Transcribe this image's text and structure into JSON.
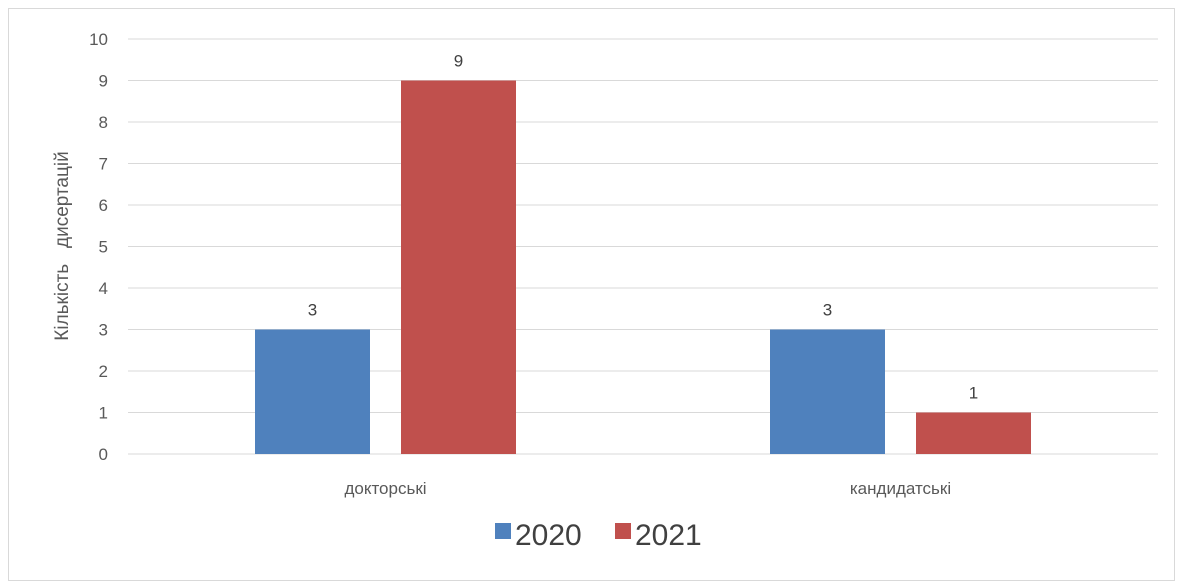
{
  "chart_data": {
    "type": "bar",
    "categories": [
      "докторські",
      "кандидатські"
    ],
    "series": [
      {
        "name": "2020",
        "values": [
          3,
          3
        ],
        "color": "#4F81BD"
      },
      {
        "name": "2021",
        "values": [
          9,
          1
        ],
        "color": "#C0504D"
      }
    ],
    "title": "",
    "xlabel": "",
    "ylabel": "Кількість   дисертацій",
    "ylim": [
      0,
      10
    ],
    "yticks": [
      0,
      1,
      2,
      3,
      4,
      5,
      6,
      7,
      8,
      9,
      10
    ],
    "grid": true,
    "legend_position": "bottom",
    "data_labels": true
  }
}
